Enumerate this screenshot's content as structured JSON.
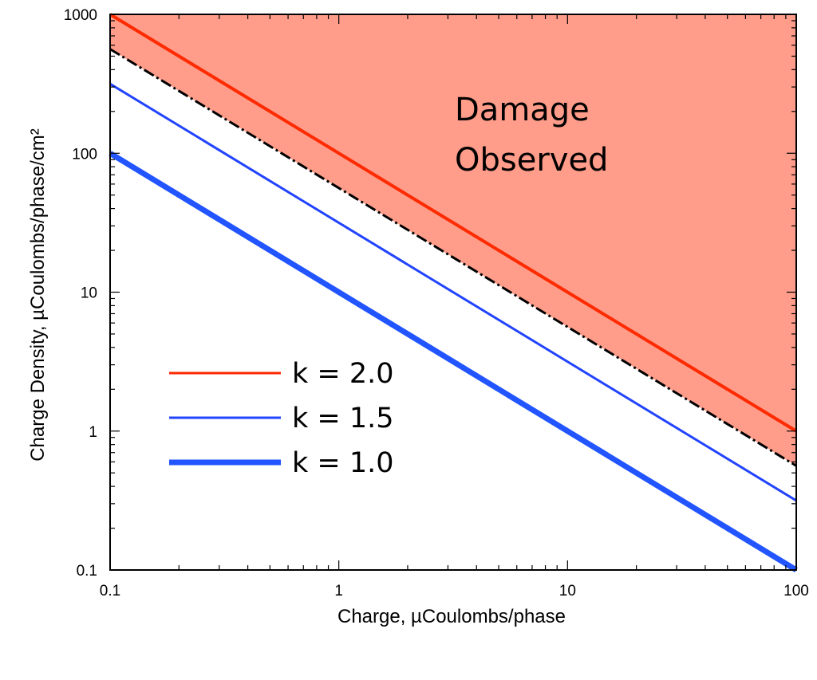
{
  "chart_data": {
    "type": "line",
    "xscale": "log",
    "yscale": "log",
    "xlim": [
      0.1,
      100
    ],
    "ylim": [
      0.1,
      1000
    ],
    "xticks": [
      "0.1",
      "1",
      "10",
      "100"
    ],
    "yticks": [
      "0.1",
      "1",
      "10",
      "100",
      "1000"
    ],
    "xlabel": "Charge,  µCoulombs/phase",
    "ylabel": "Charge Density,  µCoulombs/phase/cm²",
    "grid": false,
    "legend_position": "bottom-left",
    "series": [
      {
        "name": "k = 2.0",
        "color": "#ff2a00",
        "x": [
          0.1,
          100
        ],
        "y": [
          1000,
          1.0
        ]
      },
      {
        "name": "k = 1.5",
        "color": "#2244ff",
        "x": [
          0.1,
          100
        ],
        "y": [
          316,
          0.316
        ]
      },
      {
        "name": "k = 1.0",
        "color": "#2255ff",
        "x": [
          0.1,
          100
        ],
        "y": [
          100,
          0.1
        ]
      },
      {
        "color": "#000000",
        "style": "dash-dot",
        "x": [
          0.1,
          100
        ],
        "y": [
          562,
          0.562
        ]
      }
    ],
    "shaded_region": {
      "label_lines": [
        "Damage",
        "Observed"
      ],
      "color": "#ff9c8a",
      "description_boundary": "above dash-dot line"
    }
  }
}
